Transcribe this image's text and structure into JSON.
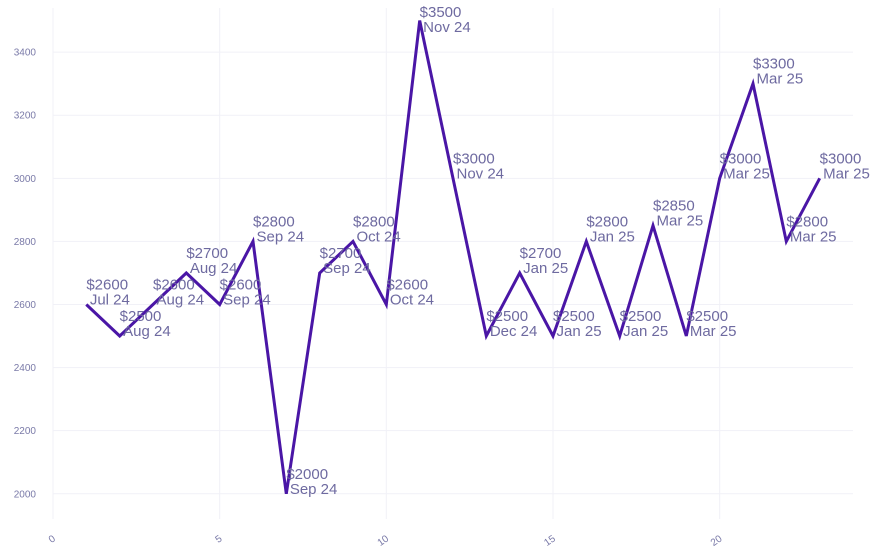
{
  "chart_data": {
    "type": "line",
    "title": "",
    "xlabel": "",
    "ylabel": "",
    "xlim": [
      0,
      24
    ],
    "ylim": [
      1920,
      3540
    ],
    "x_ticks": [
      0,
      5,
      10,
      15,
      20
    ],
    "y_ticks": [
      2000,
      2200,
      2400,
      2600,
      2800,
      3000,
      3200,
      3400
    ],
    "grid": true,
    "line_color": "#4a16a6",
    "label_color": "#6e6aa0",
    "points": [
      {
        "x": 1,
        "y": 2600,
        "value_label": "$2600",
        "date_label": "Jul 24"
      },
      {
        "x": 2,
        "y": 2500,
        "value_label": "$2500",
        "date_label": "Aug 24"
      },
      {
        "x": 3,
        "y": 2600,
        "value_label": "$2600",
        "date_label": "Aug 24"
      },
      {
        "x": 4,
        "y": 2700,
        "value_label": "$2700",
        "date_label": "Aug 24"
      },
      {
        "x": 5,
        "y": 2600,
        "value_label": "$2600",
        "date_label": "Sep 24"
      },
      {
        "x": 6,
        "y": 2800,
        "value_label": "$2800",
        "date_label": "Sep 24"
      },
      {
        "x": 7,
        "y": 2000,
        "value_label": "$2000",
        "date_label": "Sep 24"
      },
      {
        "x": 8,
        "y": 2700,
        "value_label": "$2700",
        "date_label": "Sep 24"
      },
      {
        "x": 9,
        "y": 2800,
        "value_label": "$2800",
        "date_label": "Oct 24"
      },
      {
        "x": 10,
        "y": 2600,
        "value_label": "$2600",
        "date_label": "Oct 24"
      },
      {
        "x": 11,
        "y": 3500,
        "value_label": "$3500",
        "date_label": "Nov 24"
      },
      {
        "x": 12,
        "y": 3000,
        "value_label": "$3000",
        "date_label": "Nov 24"
      },
      {
        "x": 13,
        "y": 2500,
        "value_label": "$2500",
        "date_label": "Dec 24"
      },
      {
        "x": 14,
        "y": 2700,
        "value_label": "$2700",
        "date_label": "Jan 25"
      },
      {
        "x": 15,
        "y": 2500,
        "value_label": "$2500",
        "date_label": "Jan 25"
      },
      {
        "x": 16,
        "y": 2800,
        "value_label": "$2800",
        "date_label": "Jan 25"
      },
      {
        "x": 17,
        "y": 2500,
        "value_label": "$2500",
        "date_label": "Jan 25"
      },
      {
        "x": 18,
        "y": 2850,
        "value_label": "$2850",
        "date_label": "Mar 25"
      },
      {
        "x": 19,
        "y": 2500,
        "value_label": "$2500",
        "date_label": "Mar 25"
      },
      {
        "x": 20,
        "y": 3000,
        "value_label": "$3000",
        "date_label": "Mar 25"
      },
      {
        "x": 21,
        "y": 3300,
        "value_label": "$3300",
        "date_label": "Mar 25"
      },
      {
        "x": 22,
        "y": 2800,
        "value_label": "$2800",
        "date_label": "Mar 25"
      },
      {
        "x": 23,
        "y": 3000,
        "value_label": "$3000",
        "date_label": "Mar 25"
      }
    ]
  }
}
